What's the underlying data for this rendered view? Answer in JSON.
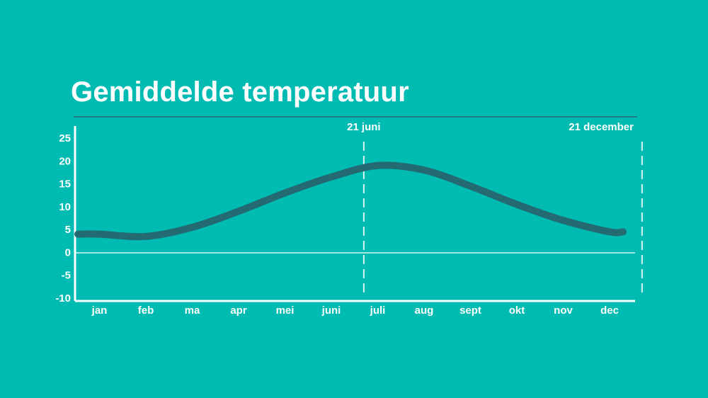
{
  "title": "Gemiddelde temperatuur",
  "colors": {
    "background": "#00bbb2",
    "line": "#236a73",
    "axis": "#ffffff",
    "rule": "#236a73"
  },
  "chart_data": {
    "type": "line",
    "title": "Gemiddelde temperatuur",
    "xlabel": "",
    "ylabel": "",
    "ylim": [
      -10,
      25
    ],
    "yticks": [
      25,
      20,
      15,
      10,
      5,
      0,
      -5,
      -10
    ],
    "categories": [
      "jan",
      "feb",
      "ma",
      "apr",
      "mei",
      "juni",
      "juli",
      "aug",
      "sept",
      "okt",
      "nov",
      "dec"
    ],
    "values": [
      4,
      3.5,
      5.5,
      9,
      13,
      16.5,
      19,
      18,
      14.5,
      10.5,
      7,
      4.5
    ],
    "grid": false,
    "legend": "none",
    "annotations": [
      {
        "label": "21 juni",
        "x_month": 6.7
      },
      {
        "label": "21 december",
        "x_month": 12.7
      }
    ]
  }
}
